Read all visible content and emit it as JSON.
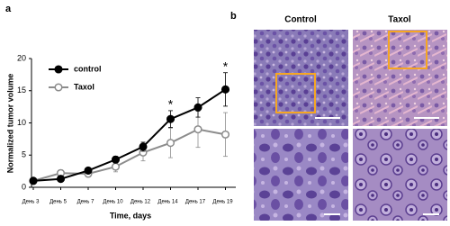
{
  "chart_data": {
    "type": "line",
    "panel_label": "a",
    "ylabel": "Normalized tumor volume",
    "xlabel": "Time, days",
    "categories": [
      "День 3",
      "День 5",
      "День 7",
      "День 10",
      "День 12",
      "День 14",
      "День 17",
      "День 19"
    ],
    "series": [
      {
        "name": "control",
        "color": "#000000",
        "marker_fill": "#000000",
        "values": [
          1.0,
          1.3,
          2.6,
          4.3,
          6.3,
          10.6,
          12.4,
          15.2
        ],
        "errors": [
          0.2,
          0.3,
          0.4,
          0.5,
          0.7,
          1.3,
          1.5,
          2.6
        ]
      },
      {
        "name": "Taxol",
        "color": "#8c8c8c",
        "marker_fill": "#ffffff",
        "values": [
          1.0,
          2.2,
          2.1,
          3.2,
          5.4,
          6.9,
          9.0,
          8.2
        ],
        "errors": [
          0.2,
          0.5,
          0.5,
          0.8,
          1.3,
          2.3,
          2.8,
          3.4
        ]
      }
    ],
    "annotations": [
      {
        "text": "*",
        "category": "День 14"
      },
      {
        "text": "*",
        "category": "День 19"
      }
    ],
    "ylim": [
      0,
      20
    ],
    "yticks": [
      0,
      5,
      10,
      15,
      20
    ],
    "legend": "upper-left",
    "grid": false
  },
  "histology": {
    "panel_label": "b",
    "columns": [
      "Control",
      "Taxol"
    ]
  }
}
